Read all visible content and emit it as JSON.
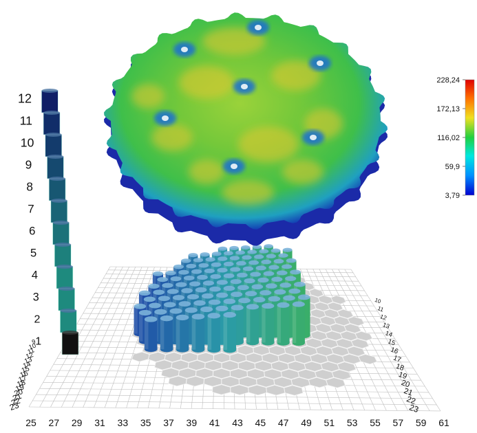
{
  "colorbar": {
    "ticks": [
      "228,24",
      "172,13",
      "116,02",
      "59,9",
      "3,79"
    ]
  },
  "height_column": {
    "levels": [
      "12",
      "11",
      "10",
      "9",
      "8",
      "7",
      "6",
      "5",
      "4",
      "3",
      "2",
      "1"
    ]
  },
  "grid": {
    "bottom_labels": [
      "25",
      "27",
      "29",
      "31",
      "33",
      "35",
      "37",
      "39",
      "41",
      "43",
      "45",
      "47",
      "49",
      "51",
      "53",
      "55",
      "57",
      "59",
      "61"
    ],
    "left_labels": [
      "9",
      "10",
      "11",
      "12",
      "13",
      "14",
      "15",
      "16",
      "17",
      "18",
      "19",
      "20",
      "21",
      "22",
      "23"
    ],
    "right_labels": [
      "10",
      "11",
      "12",
      "13",
      "14",
      "15",
      "16",
      "17",
      "18",
      "19",
      "20",
      "21",
      "22",
      "23"
    ]
  },
  "colors": {
    "colormap": [
      "#0000d0",
      "#0090ff",
      "#00e8e0",
      "#20d040",
      "#f0e020",
      "#ff7000",
      "#e00000"
    ],
    "rod_blue": "#1f4fa8",
    "rod_teal": "#2a9aa8",
    "rod_green": "#3aae6a",
    "column_dark": "#0f1f66",
    "column_teal": "#1e8a7e",
    "column_base": "#111111",
    "hex_fill": "#cfcfcf",
    "grid_line": "#bdbdbd"
  }
}
